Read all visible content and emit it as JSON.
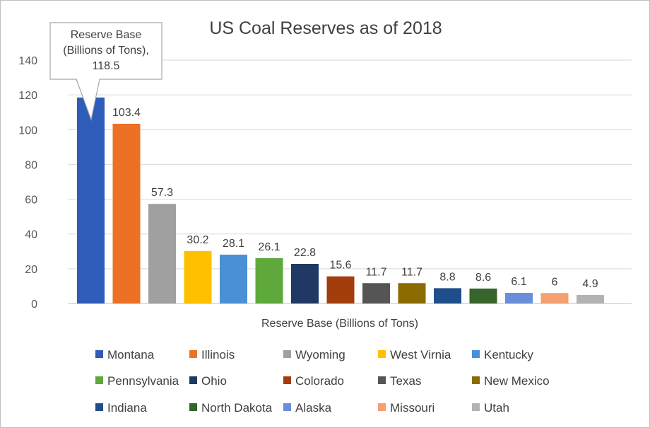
{
  "chart_data": {
    "type": "bar",
    "title": "US Coal Reserves as of 2018",
    "xlabel": "Reserve Base (Billions of Tons)",
    "ylabel": "",
    "ylim": [
      0,
      140
    ],
    "yticks": [
      0,
      20,
      40,
      60,
      80,
      100,
      120,
      140
    ],
    "grid": true,
    "legend_position": "bottom",
    "series": [
      {
        "name": "Montana",
        "value": 118.5,
        "label": "118.5",
        "color": "#2e5cb8"
      },
      {
        "name": "Illinois",
        "value": 103.4,
        "label": "103.4",
        "color": "#ed7125"
      },
      {
        "name": "Wyoming",
        "value": 57.3,
        "label": "57.3",
        "color": "#a0a0a0"
      },
      {
        "name": "West Virnia",
        "value": 30.2,
        "label": "30.2",
        "color": "#ffc000"
      },
      {
        "name": "Kentucky",
        "value": 28.1,
        "label": "28.1",
        "color": "#4a90d6"
      },
      {
        "name": "Pennsylvania",
        "value": 26.1,
        "label": "26.1",
        "color": "#5ea83c"
      },
      {
        "name": "Ohio",
        "value": 22.8,
        "label": "22.8",
        "color": "#1f3864"
      },
      {
        "name": "Colorado",
        "value": 15.6,
        "label": "15.6",
        "color": "#a33d0c"
      },
      {
        "name": "Texas",
        "value": 11.7,
        "label": "11.7",
        "color": "#555555"
      },
      {
        "name": "New Mexico",
        "value": 11.7,
        "label": "11.7",
        "color": "#8b6b00"
      },
      {
        "name": "Indiana",
        "value": 8.8,
        "label": "8.8",
        "color": "#1f4f8a"
      },
      {
        "name": "North Dakota",
        "value": 8.6,
        "label": "8.6",
        "color": "#37642a"
      },
      {
        "name": "Alaska",
        "value": 6.1,
        "label": "6.1",
        "color": "#6a8fd8"
      },
      {
        "name": "Missouri",
        "value": 6,
        "label": "6",
        "color": "#f4a070"
      },
      {
        "name": "Utah",
        "value": 4.9,
        "label": "4.9",
        "color": "#b3b3b3"
      }
    ],
    "callout": {
      "series_index": 0,
      "lines": [
        "Reserve Base",
        "(Billions of Tons),",
        "118.5"
      ]
    }
  }
}
